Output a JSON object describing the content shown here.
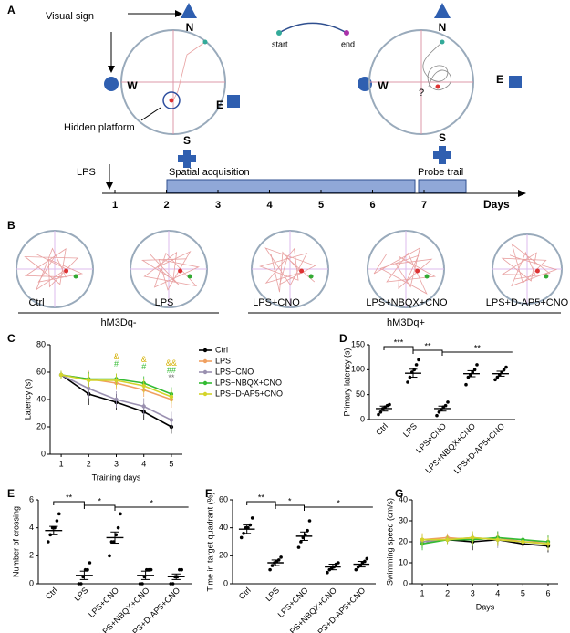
{
  "diagram_a": {
    "panel": "A",
    "visual_sign": "Visual sign",
    "hidden_platform": "Hidden platform",
    "start": "start",
    "end": "end",
    "question": "?",
    "maze_1": {
      "north": "N",
      "west": "W",
      "east": "E",
      "south": "S"
    },
    "maze_2": {
      "north": "N",
      "west": "W",
      "east": "E",
      "south": "S"
    },
    "timeline": {
      "treatment": "LPS",
      "days": [
        1,
        2,
        3,
        4,
        5,
        6,
        7
      ],
      "acquisition": "Spatial acquisition",
      "probe": "Probe trail",
      "axis_label": "Days"
    }
  },
  "panel_b": {
    "panel": "B",
    "mazes": [
      "Ctrl",
      "LPS",
      "LPS+CNO",
      "LPS+NBQX+CNO",
      "LPS+D-AP5+CNO"
    ],
    "groups": [
      "hM3Dq-",
      "hM3Dq+"
    ]
  },
  "chart_data": [
    {
      "type": "line",
      "panel": "C",
      "ylabel": "Latency (s)",
      "xlabel": "Training days",
      "x": [
        1,
        2,
        3,
        4,
        5
      ],
      "xlim": [
        0.6,
        5.4
      ],
      "xticks": [
        1,
        2,
        3,
        4,
        5
      ],
      "ylim": [
        0,
        80
      ],
      "yticks": [
        0,
        20,
        40,
        60,
        80
      ],
      "legend": "right",
      "series": [
        {
          "name": "Ctrl",
          "color": "#000000",
          "values": [
            58,
            44,
            38,
            31,
            20
          ],
          "errors": [
            3,
            8,
            6,
            6,
            5
          ]
        },
        {
          "name": "LPS",
          "color": "#f0a060",
          "values": [
            58,
            55,
            52,
            47,
            40
          ],
          "errors": [
            3,
            6,
            5,
            5,
            6
          ]
        },
        {
          "name": "LPS+CNO",
          "color": "#9a90b0",
          "values": [
            58,
            48,
            40,
            35,
            25
          ],
          "errors": [
            3,
            7,
            6,
            6,
            6
          ]
        },
        {
          "name": "LPS+NBQX+CNO",
          "color": "#33bb33",
          "values": [
            58,
            55,
            55,
            52,
            44
          ],
          "errors": [
            3,
            5,
            4,
            5,
            5
          ]
        },
        {
          "name": "LPS+D-AP5+CNO",
          "color": "#d4d42a",
          "values": [
            58,
            54,
            54,
            50,
            42
          ],
          "errors": [
            3,
            5,
            5,
            5,
            5
          ]
        }
      ],
      "annotations": [
        {
          "text": "#",
          "x": 3,
          "color": "#33bb33"
        },
        {
          "text": "&",
          "x": 3,
          "color": "#d4b000"
        },
        {
          "text": "#",
          "x": 4,
          "color": "#33bb33"
        },
        {
          "text": "&",
          "x": 4,
          "color": "#d4b000"
        },
        {
          "text": "**",
          "x": 5,
          "color": "#777777"
        },
        {
          "text": "##",
          "x": 5,
          "color": "#33bb33"
        },
        {
          "text": "&&",
          "x": 5,
          "color": "#d4b000"
        }
      ]
    },
    {
      "type": "dotbar",
      "panel": "D",
      "ylabel": "Primary latency (s)",
      "ylim": [
        0,
        150
      ],
      "yticks": [
        0,
        50,
        100,
        150
      ],
      "categories": [
        "Ctrl",
        "LPS",
        "LPS+CNO",
        "LPS+NBQX+CNO",
        "LPS+D-AP5+CNO"
      ],
      "values": [
        22,
        93,
        22,
        92,
        92
      ],
      "errors": [
        5,
        8,
        5,
        6,
        5
      ],
      "points": [
        [
          10,
          15,
          22,
          25,
          28,
          30
        ],
        [
          75,
          85,
          95,
          100,
          110,
          120
        ],
        [
          8,
          15,
          20,
          25,
          28,
          35
        ],
        [
          70,
          85,
          90,
          95,
          100,
          110
        ],
        [
          80,
          85,
          90,
          95,
          100,
          105
        ]
      ],
      "significance": [
        {
          "from": 0,
          "to": 1,
          "label": "***"
        },
        {
          "from": 1,
          "to": 2,
          "label": "**"
        },
        {
          "from": 2,
          "to": 4,
          "label": "**"
        }
      ]
    },
    {
      "type": "dotbar",
      "panel": "E",
      "ylabel": "Number of crossing",
      "ylim": [
        0,
        6
      ],
      "yticks": [
        0,
        2,
        4,
        6
      ],
      "categories": [
        "Ctrl",
        "LPS",
        "LPS+CNO",
        "LPS+NBQX+CNO",
        "LPS+D-AP5+CNO"
      ],
      "values": [
        3.8,
        0.6,
        3.3,
        0.6,
        0.5
      ],
      "errors": [
        0.3,
        0.3,
        0.4,
        0.3,
        0.2
      ],
      "points": [
        [
          3,
          3.5,
          4,
          4,
          4.5,
          5
        ],
        [
          0,
          0,
          0.5,
          1,
          1,
          1.5
        ],
        [
          2,
          3,
          3,
          3.5,
          4,
          5
        ],
        [
          0,
          0,
          0.5,
          1,
          1,
          1
        ],
        [
          0,
          0,
          0.5,
          0.5,
          1,
          1
        ]
      ],
      "significance": [
        {
          "from": 0,
          "to": 1,
          "label": "**"
        },
        {
          "from": 1,
          "to": 2,
          "label": "*"
        },
        {
          "from": 2,
          "to": 4,
          "label": "*"
        }
      ]
    },
    {
      "type": "dotbar",
      "panel": "F",
      "ylabel": "Time in target quadrant (%)",
      "ylim": [
        0,
        60
      ],
      "yticks": [
        0,
        20,
        40,
        60
      ],
      "categories": [
        "Ctrl",
        "LPS",
        "LPS+CNO",
        "LPS+NBQX+CNO",
        "LPS+D-AP5+CNO"
      ],
      "values": [
        39,
        15,
        34,
        12,
        14
      ],
      "errors": [
        3,
        2,
        3,
        2,
        2
      ],
      "points": [
        [
          33,
          36,
          40,
          40,
          42,
          47
        ],
        [
          10,
          13,
          15,
          16,
          17,
          19
        ],
        [
          26,
          30,
          33,
          35,
          38,
          45
        ],
        [
          8,
          10,
          11,
          12,
          14,
          15
        ],
        [
          10,
          12,
          13,
          15,
          16,
          18
        ]
      ],
      "significance": [
        {
          "from": 0,
          "to": 1,
          "label": "**"
        },
        {
          "from": 1,
          "to": 2,
          "label": "*"
        },
        {
          "from": 2,
          "to": 4,
          "label": "*"
        }
      ]
    },
    {
      "type": "line",
      "panel": "G",
      "ylabel": "Swimming speed (cm/s)",
      "xlabel": "Days",
      "x": [
        1,
        2,
        3,
        4,
        5,
        6
      ],
      "xlim": [
        0.6,
        6.4
      ],
      "xticks": [
        1,
        2,
        3,
        4,
        5,
        6
      ],
      "ylim": [
        0,
        40
      ],
      "yticks": [
        0,
        10,
        20,
        30,
        40
      ],
      "series": [
        {
          "name": "Ctrl",
          "color": "#000000",
          "values": [
            20,
            21,
            20,
            21,
            19,
            18
          ],
          "errors": [
            3,
            2,
            4,
            3,
            3,
            3
          ]
        },
        {
          "name": "LPS",
          "color": "#f0a060",
          "values": [
            21,
            22,
            21,
            22,
            20,
            20
          ],
          "errors": [
            3,
            2,
            3,
            3,
            3,
            3
          ]
        },
        {
          "name": "LPS+CNO",
          "color": "#9a90b0",
          "values": [
            20,
            21,
            22,
            21,
            20,
            19
          ],
          "errors": [
            3,
            2,
            3,
            4,
            3,
            3
          ]
        },
        {
          "name": "LPS+NBQX+CNO",
          "color": "#33bb33",
          "values": [
            19,
            21,
            21,
            22,
            21,
            20
          ],
          "errors": [
            3,
            2,
            3,
            3,
            4,
            3
          ]
        },
        {
          "name": "LPS+D-AP5+CNO",
          "color": "#d4d42a",
          "values": [
            21,
            21,
            22,
            21,
            20,
            19
          ],
          "errors": [
            3,
            2,
            3,
            3,
            3,
            3
          ]
        }
      ]
    }
  ]
}
